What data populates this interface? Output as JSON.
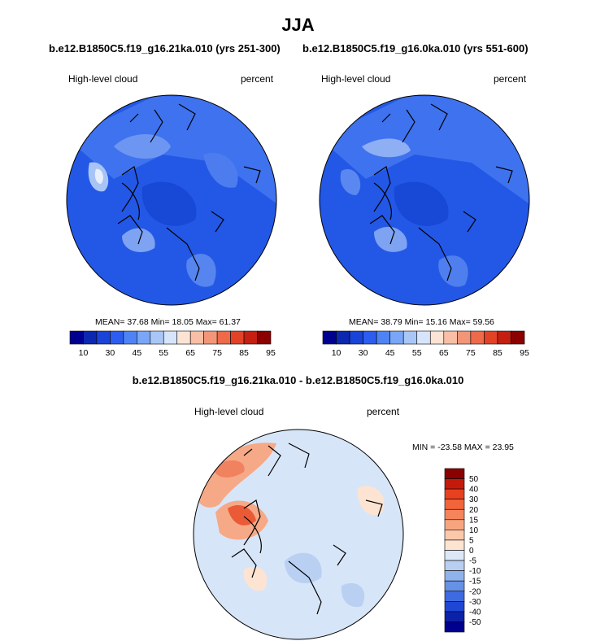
{
  "title": "JJA",
  "panels": [
    {
      "case": "b.e12.B1850C5.f19_g16.21ka.010 (yrs 251-300)",
      "field": "High-level cloud",
      "units": "percent",
      "stats": "MEAN=  37.68  Min=  18.05  Max=  61.37"
    },
    {
      "case": "b.e12.B1850C5.f19_g16.0ka.010 (yrs 551-600)",
      "field": "High-level cloud",
      "units": "percent",
      "stats": "MEAN=  38.79  Min=  15.16  Max=  59.56"
    }
  ],
  "colorbar_abs": {
    "labels": [
      "10",
      "30",
      "45",
      "55",
      "65",
      "75",
      "85",
      "95"
    ],
    "colors": [
      "#00008f",
      "#0c27b0",
      "#1a44d8",
      "#2d5df0",
      "#4f83f5",
      "#7aa6f7",
      "#a9c6f7",
      "#d6e5fb",
      "#fde3d4",
      "#f8bea6",
      "#f39577",
      "#ee6a48",
      "#e24226",
      "#c51f12",
      "#8b0000"
    ]
  },
  "diff": {
    "case": "b.e12.B1850C5.f19_g16.21ka.010 - b.e12.B1850C5.f19_g16.0ka.010",
    "field": "High-level cloud",
    "units": "percent",
    "stats": "MIN = -23.58 MAX =  23.95"
  },
  "colorbar_diff": {
    "labels": [
      "50",
      "40",
      "30",
      "20",
      "15",
      "10",
      "5",
      "0",
      "-5",
      "-10",
      "-15",
      "-20",
      "-30",
      "-40",
      "-50"
    ],
    "colors": [
      "#8b0000",
      "#c41a0c",
      "#e6421f",
      "#f2653a",
      "#f5845a",
      "#f8a57f",
      "#fbc8aa",
      "#fde4d2",
      "#dce8f8",
      "#b8cff2",
      "#8fb2ec",
      "#6791e6",
      "#3f6be0",
      "#1f47d4",
      "#0b22a8",
      "#00008f"
    ]
  }
}
